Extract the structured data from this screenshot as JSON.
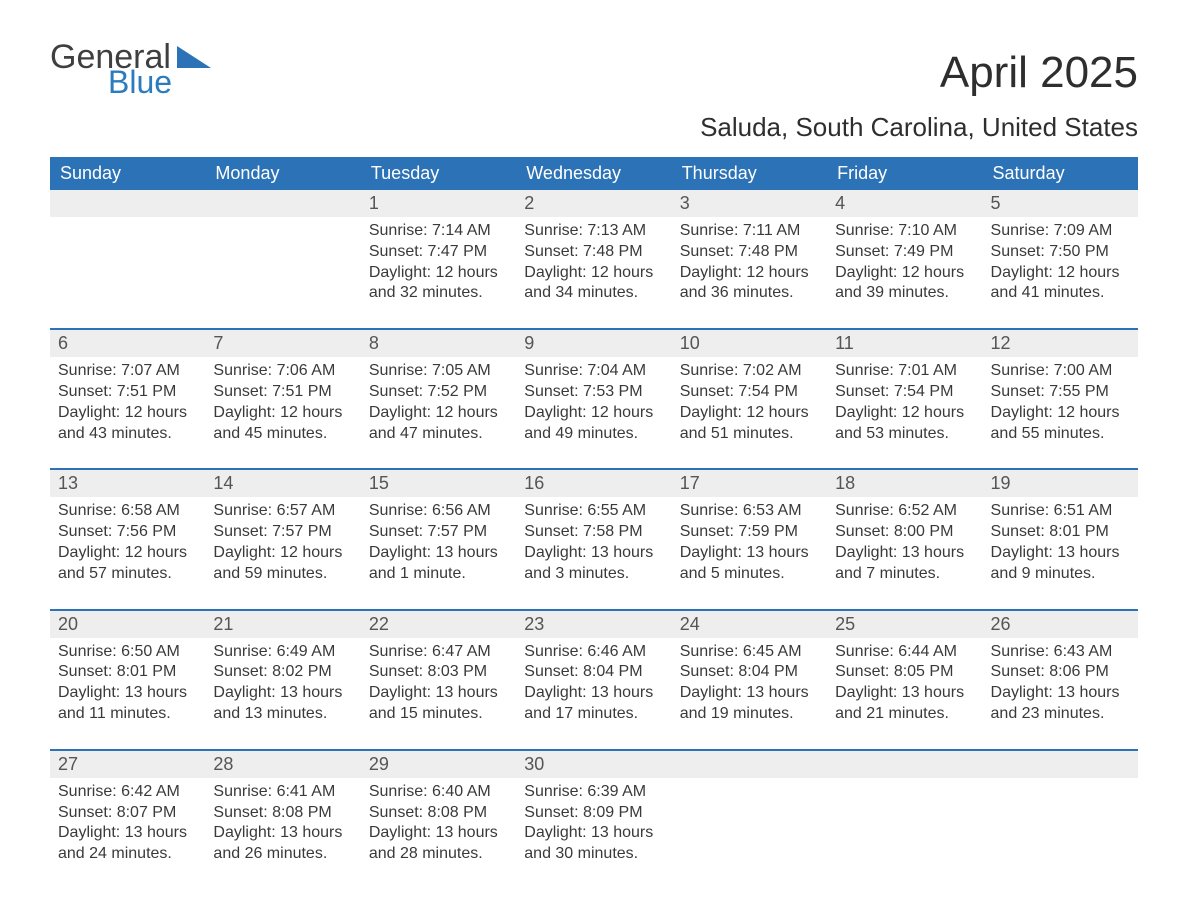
{
  "logo": {
    "word1": "General",
    "word2": "Blue",
    "tri_color": "#2c72b6"
  },
  "title": "April 2025",
  "location": "Saluda, South Carolina, United States",
  "colors": {
    "header_bg": "#2c72b6",
    "header_text": "#ffffff",
    "daynum_bg": "#eeeeee",
    "week_border": "#2c72b6",
    "body_text": "#3a3a3a"
  },
  "day_labels": [
    "Sunday",
    "Monday",
    "Tuesday",
    "Wednesday",
    "Thursday",
    "Friday",
    "Saturday"
  ],
  "weeks": [
    [
      {
        "n": "",
        "sunrise": "",
        "sunset": "",
        "daylight": ""
      },
      {
        "n": "",
        "sunrise": "",
        "sunset": "",
        "daylight": ""
      },
      {
        "n": "1",
        "sunrise": "Sunrise: 7:14 AM",
        "sunset": "Sunset: 7:47 PM",
        "daylight": "Daylight: 12 hours and 32 minutes."
      },
      {
        "n": "2",
        "sunrise": "Sunrise: 7:13 AM",
        "sunset": "Sunset: 7:48 PM",
        "daylight": "Daylight: 12 hours and 34 minutes."
      },
      {
        "n": "3",
        "sunrise": "Sunrise: 7:11 AM",
        "sunset": "Sunset: 7:48 PM",
        "daylight": "Daylight: 12 hours and 36 minutes."
      },
      {
        "n": "4",
        "sunrise": "Sunrise: 7:10 AM",
        "sunset": "Sunset: 7:49 PM",
        "daylight": "Daylight: 12 hours and 39 minutes."
      },
      {
        "n": "5",
        "sunrise": "Sunrise: 7:09 AM",
        "sunset": "Sunset: 7:50 PM",
        "daylight": "Daylight: 12 hours and 41 minutes."
      }
    ],
    [
      {
        "n": "6",
        "sunrise": "Sunrise: 7:07 AM",
        "sunset": "Sunset: 7:51 PM",
        "daylight": "Daylight: 12 hours and 43 minutes."
      },
      {
        "n": "7",
        "sunrise": "Sunrise: 7:06 AM",
        "sunset": "Sunset: 7:51 PM",
        "daylight": "Daylight: 12 hours and 45 minutes."
      },
      {
        "n": "8",
        "sunrise": "Sunrise: 7:05 AM",
        "sunset": "Sunset: 7:52 PM",
        "daylight": "Daylight: 12 hours and 47 minutes."
      },
      {
        "n": "9",
        "sunrise": "Sunrise: 7:04 AM",
        "sunset": "Sunset: 7:53 PM",
        "daylight": "Daylight: 12 hours and 49 minutes."
      },
      {
        "n": "10",
        "sunrise": "Sunrise: 7:02 AM",
        "sunset": "Sunset: 7:54 PM",
        "daylight": "Daylight: 12 hours and 51 minutes."
      },
      {
        "n": "11",
        "sunrise": "Sunrise: 7:01 AM",
        "sunset": "Sunset: 7:54 PM",
        "daylight": "Daylight: 12 hours and 53 minutes."
      },
      {
        "n": "12",
        "sunrise": "Sunrise: 7:00 AM",
        "sunset": "Sunset: 7:55 PM",
        "daylight": "Daylight: 12 hours and 55 minutes."
      }
    ],
    [
      {
        "n": "13",
        "sunrise": "Sunrise: 6:58 AM",
        "sunset": "Sunset: 7:56 PM",
        "daylight": "Daylight: 12 hours and 57 minutes."
      },
      {
        "n": "14",
        "sunrise": "Sunrise: 6:57 AM",
        "sunset": "Sunset: 7:57 PM",
        "daylight": "Daylight: 12 hours and 59 minutes."
      },
      {
        "n": "15",
        "sunrise": "Sunrise: 6:56 AM",
        "sunset": "Sunset: 7:57 PM",
        "daylight": "Daylight: 13 hours and 1 minute."
      },
      {
        "n": "16",
        "sunrise": "Sunrise: 6:55 AM",
        "sunset": "Sunset: 7:58 PM",
        "daylight": "Daylight: 13 hours and 3 minutes."
      },
      {
        "n": "17",
        "sunrise": "Sunrise: 6:53 AM",
        "sunset": "Sunset: 7:59 PM",
        "daylight": "Daylight: 13 hours and 5 minutes."
      },
      {
        "n": "18",
        "sunrise": "Sunrise: 6:52 AM",
        "sunset": "Sunset: 8:00 PM",
        "daylight": "Daylight: 13 hours and 7 minutes."
      },
      {
        "n": "19",
        "sunrise": "Sunrise: 6:51 AM",
        "sunset": "Sunset: 8:01 PM",
        "daylight": "Daylight: 13 hours and 9 minutes."
      }
    ],
    [
      {
        "n": "20",
        "sunrise": "Sunrise: 6:50 AM",
        "sunset": "Sunset: 8:01 PM",
        "daylight": "Daylight: 13 hours and 11 minutes."
      },
      {
        "n": "21",
        "sunrise": "Sunrise: 6:49 AM",
        "sunset": "Sunset: 8:02 PM",
        "daylight": "Daylight: 13 hours and 13 minutes."
      },
      {
        "n": "22",
        "sunrise": "Sunrise: 6:47 AM",
        "sunset": "Sunset: 8:03 PM",
        "daylight": "Daylight: 13 hours and 15 minutes."
      },
      {
        "n": "23",
        "sunrise": "Sunrise: 6:46 AM",
        "sunset": "Sunset: 8:04 PM",
        "daylight": "Daylight: 13 hours and 17 minutes."
      },
      {
        "n": "24",
        "sunrise": "Sunrise: 6:45 AM",
        "sunset": "Sunset: 8:04 PM",
        "daylight": "Daylight: 13 hours and 19 minutes."
      },
      {
        "n": "25",
        "sunrise": "Sunrise: 6:44 AM",
        "sunset": "Sunset: 8:05 PM",
        "daylight": "Daylight: 13 hours and 21 minutes."
      },
      {
        "n": "26",
        "sunrise": "Sunrise: 6:43 AM",
        "sunset": "Sunset: 8:06 PM",
        "daylight": "Daylight: 13 hours and 23 minutes."
      }
    ],
    [
      {
        "n": "27",
        "sunrise": "Sunrise: 6:42 AM",
        "sunset": "Sunset: 8:07 PM",
        "daylight": "Daylight: 13 hours and 24 minutes."
      },
      {
        "n": "28",
        "sunrise": "Sunrise: 6:41 AM",
        "sunset": "Sunset: 8:08 PM",
        "daylight": "Daylight: 13 hours and 26 minutes."
      },
      {
        "n": "29",
        "sunrise": "Sunrise: 6:40 AM",
        "sunset": "Sunset: 8:08 PM",
        "daylight": "Daylight: 13 hours and 28 minutes."
      },
      {
        "n": "30",
        "sunrise": "Sunrise: 6:39 AM",
        "sunset": "Sunset: 8:09 PM",
        "daylight": "Daylight: 13 hours and 30 minutes."
      },
      {
        "n": "",
        "sunrise": "",
        "sunset": "",
        "daylight": ""
      },
      {
        "n": "",
        "sunrise": "",
        "sunset": "",
        "daylight": ""
      },
      {
        "n": "",
        "sunrise": "",
        "sunset": "",
        "daylight": ""
      }
    ]
  ]
}
